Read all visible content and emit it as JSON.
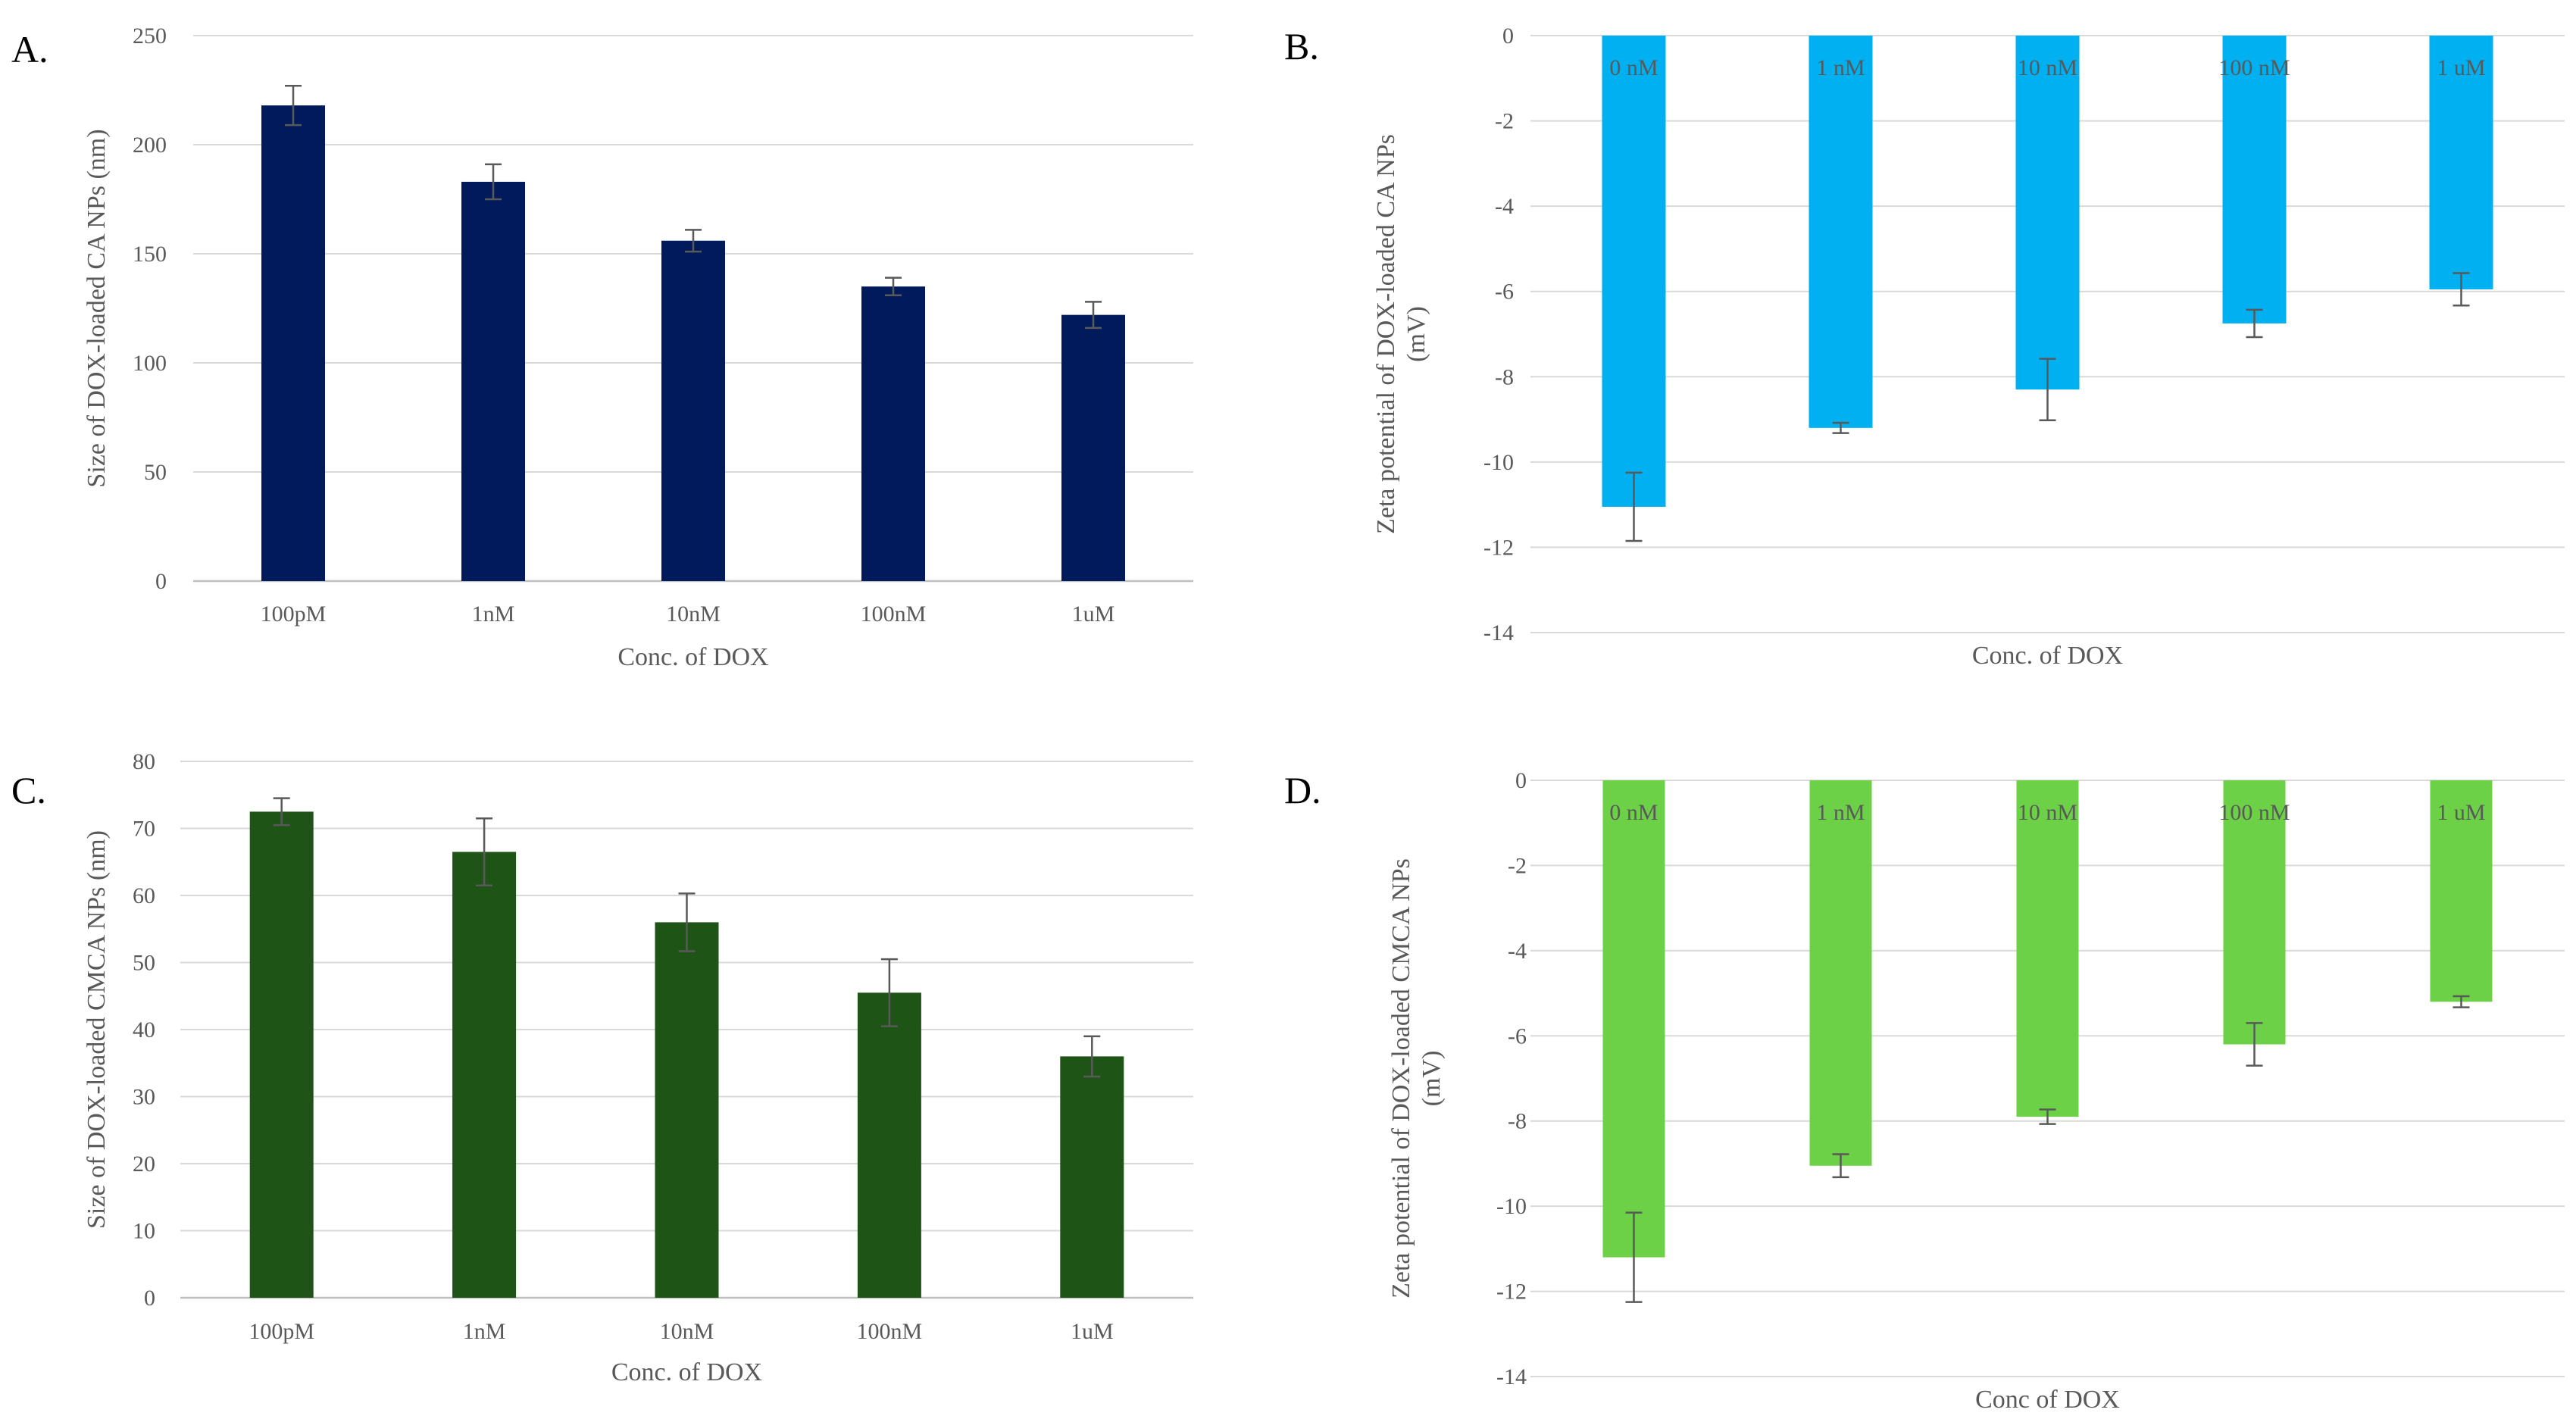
{
  "panels": [
    {
      "panel_label": "A.",
      "chart_data": {
        "type": "bar",
        "categories": [
          "100pM",
          "1nM",
          "10nM",
          "100nM",
          "1uM"
        ],
        "values": [
          218,
          183,
          156,
          135,
          122
        ],
        "errors": [
          9,
          8,
          5,
          4,
          6
        ],
        "xlabel": "Conc. of DOX",
        "ylabel": "Size of DOX-loaded CA NPs (nm)",
        "ylim": [
          0,
          250
        ],
        "yticks": [
          "0",
          "50",
          "100",
          "150",
          "200",
          "250"
        ],
        "color": "#001a5c",
        "grid": true,
        "labels_on_bars": false
      }
    },
    {
      "panel_label": "B.",
      "chart_data": {
        "type": "bar",
        "categories": [
          "0 nM",
          "1 nM",
          "10 nM",
          "100 nM",
          "1 uM"
        ],
        "values": [
          -11.05,
          -9.2,
          -8.3,
          -6.75,
          -5.95
        ],
        "errors": [
          0.8,
          0.12,
          0.72,
          0.32,
          0.38
        ],
        "xlabel": "Conc. of DOX",
        "ylabel": [
          "Zeta potential of DOX-loaded CA NPs",
          "(mV)"
        ],
        "ylim": [
          -14,
          0
        ],
        "yticks": [
          "-14",
          "-12",
          "-10",
          "-8",
          "-6",
          "-4",
          "-2",
          "0"
        ],
        "color": "#00b0f0",
        "grid": true,
        "labels_on_bars": true
      }
    },
    {
      "panel_label": "C.",
      "chart_data": {
        "type": "bar",
        "categories": [
          "100pM",
          "1nM",
          "10nM",
          "100nM",
          "1uM"
        ],
        "values": [
          72.5,
          66.5,
          56,
          45.5,
          36
        ],
        "errors": [
          2,
          5,
          4.3,
          5,
          3
        ],
        "xlabel": "Conc. of DOX",
        "ylabel": "Size of DOX-loaded CMCA NPs (nm)",
        "ylim": [
          0,
          80
        ],
        "yticks": [
          "0",
          "10",
          "20",
          "30",
          "40",
          "50",
          "60",
          "70",
          "80"
        ],
        "color": "#1f5417",
        "grid": true,
        "labels_on_bars": false
      }
    },
    {
      "panel_label": "D.",
      "chart_data": {
        "type": "bar",
        "categories": [
          "0 nM",
          "1 nM",
          "10 nM",
          "100 nM",
          "1 uM"
        ],
        "values": [
          -11.2,
          -9.05,
          -7.9,
          -6.2,
          -5.2
        ],
        "errors": [
          1.05,
          0.27,
          0.17,
          0.5,
          0.13
        ],
        "xlabel": "Conc of DOX",
        "ylabel": [
          "Zeta potential of DOX-loaded CMCA NPs",
          "(mV)"
        ],
        "ylim": [
          -14,
          0
        ],
        "yticks": [
          "-14",
          "-12",
          "-10",
          "-8",
          "-6",
          "-4",
          "-2",
          "0"
        ],
        "color": "#6cd146",
        "grid": true,
        "labels_on_bars": true
      }
    }
  ]
}
